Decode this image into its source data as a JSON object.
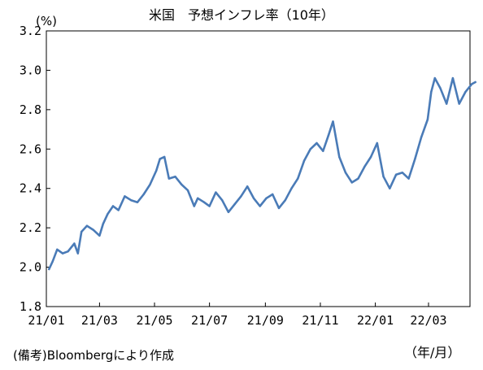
{
  "chart_data": {
    "type": "line",
    "title": "米国　予想インフレ率（10年）",
    "unit_label": "(%)",
    "xlabel": "",
    "x_unit_label": "（年/月）",
    "ylabel": "",
    "source_note": "(備考)Bloombergにより作成",
    "ylim": [
      1.8,
      3.2
    ],
    "yticks": [
      "1.8",
      "2.0",
      "2.2",
      "2.4",
      "2.6",
      "2.8",
      "3.0",
      "3.2"
    ],
    "xticks": [
      "21/01",
      "21/03",
      "21/05",
      "21/07",
      "21/09",
      "21/11",
      "22/01",
      "22/03"
    ],
    "grid": false,
    "line_color": "#4a7bb7",
    "series": [
      {
        "x": [
          "2021-01-04",
          "2021-01-08",
          "2021-01-13",
          "2021-01-19",
          "2021-01-25",
          "2021-02-01",
          "2021-02-05",
          "2021-02-09",
          "2021-02-15",
          "2021-02-22",
          "2021-03-01",
          "2021-03-05",
          "2021-03-10",
          "2021-03-16",
          "2021-03-22",
          "2021-03-29",
          "2021-04-05",
          "2021-04-12",
          "2021-04-19",
          "2021-04-26",
          "2021-05-03",
          "2021-05-07",
          "2021-05-12",
          "2021-05-17",
          "2021-05-24",
          "2021-05-31",
          "2021-06-07",
          "2021-06-14",
          "2021-06-18",
          "2021-06-25",
          "2021-07-01",
          "2021-07-08",
          "2021-07-15",
          "2021-07-22",
          "2021-07-29",
          "2021-08-05",
          "2021-08-12",
          "2021-08-19",
          "2021-08-26",
          "2021-09-02",
          "2021-09-09",
          "2021-09-16",
          "2021-09-23",
          "2021-09-30",
          "2021-10-07",
          "2021-10-14",
          "2021-10-21",
          "2021-10-28",
          "2021-11-04",
          "2021-11-10",
          "2021-11-15",
          "2021-11-22",
          "2021-11-29",
          "2021-12-06",
          "2021-12-13",
          "2021-12-20",
          "2021-12-27",
          "2022-01-03",
          "2022-01-10",
          "2022-01-17",
          "2022-01-24",
          "2022-01-31",
          "2022-02-07",
          "2022-02-14",
          "2022-02-21",
          "2022-02-28",
          "2022-03-04",
          "2022-03-08",
          "2022-03-14",
          "2022-03-21",
          "2022-03-28",
          "2022-04-04",
          "2022-04-11",
          "2022-04-18",
          "2022-04-22"
        ],
        "values": [
          1.99,
          2.03,
          2.09,
          2.07,
          2.08,
          2.12,
          2.07,
          2.18,
          2.21,
          2.19,
          2.16,
          2.22,
          2.27,
          2.31,
          2.29,
          2.36,
          2.34,
          2.33,
          2.37,
          2.42,
          2.49,
          2.55,
          2.56,
          2.45,
          2.46,
          2.42,
          2.39,
          2.31,
          2.35,
          2.33,
          2.31,
          2.38,
          2.34,
          2.28,
          2.32,
          2.36,
          2.41,
          2.35,
          2.31,
          2.35,
          2.37,
          2.3,
          2.34,
          2.4,
          2.45,
          2.54,
          2.6,
          2.63,
          2.59,
          2.67,
          2.74,
          2.56,
          2.48,
          2.43,
          2.45,
          2.51,
          2.56,
          2.63,
          2.46,
          2.4,
          2.47,
          2.48,
          2.45,
          2.55,
          2.66,
          2.75,
          2.89,
          2.96,
          2.91,
          2.83,
          2.96,
          2.83,
          2.89,
          2.93,
          2.94
        ]
      }
    ]
  }
}
